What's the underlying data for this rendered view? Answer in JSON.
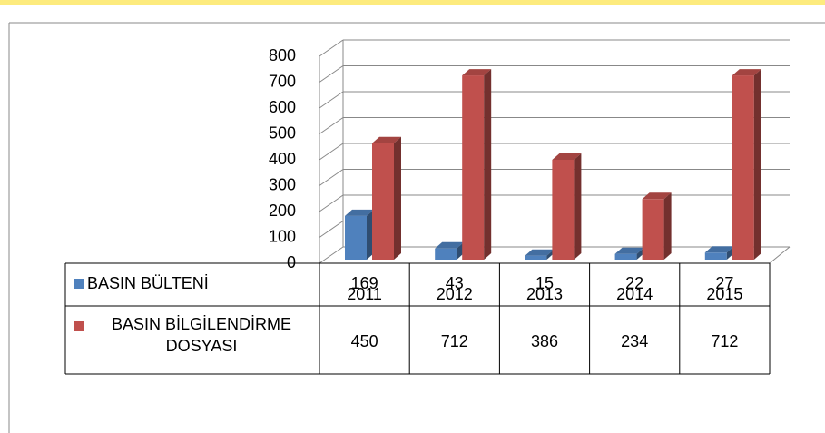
{
  "chart_data": {
    "type": "bar3d",
    "categories": [
      "2011",
      "2012",
      "2013",
      "2014",
      "2015"
    ],
    "series": [
      {
        "name": "BASIN BÜLTENİ",
        "color": "#4f81bd",
        "values": [
          169,
          43,
          15,
          22,
          27
        ]
      },
      {
        "name": "BASIN BİLGİLENDİRME DOSYASI",
        "color": "#c0504d",
        "values": [
          450,
          712,
          386,
          234,
          712
        ]
      }
    ],
    "ylim": [
      0,
      800
    ],
    "yticks": [
      0,
      100,
      200,
      300,
      400,
      500,
      600,
      700,
      800
    ],
    "grid": true,
    "legend": "table"
  }
}
